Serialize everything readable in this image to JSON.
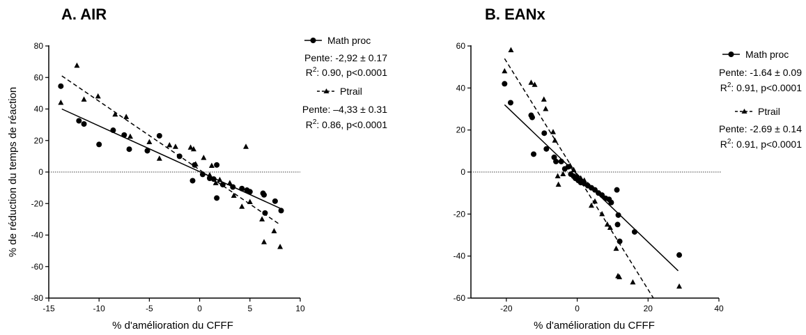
{
  "chart_data": [
    {
      "type": "scatter",
      "title": "A. AIR",
      "xlabel": "% d'amélioration du CFFF",
      "ylabel": "% de réduction du temps de réaction",
      "xlim": [
        -15,
        10
      ],
      "ylim": [
        -80,
        80
      ],
      "xticks": [
        "-15",
        "-10",
        "-5",
        "0",
        "5",
        "10"
      ],
      "yticks": [
        "80",
        "60",
        "40",
        "20",
        "0",
        "-20",
        "-40",
        "-60",
        "-80"
      ],
      "series": [
        {
          "name": "Math proc",
          "marker": "circle",
          "line": "solid",
          "fit": {
            "x0": -13.7,
            "y0": 40,
            "x1": 8,
            "y1": -23
          },
          "points": [
            [
              -13.8,
              54.5
            ],
            [
              -12,
              32.5
            ],
            [
              -11.5,
              30.5
            ],
            [
              -10,
              17.5
            ],
            [
              -8.6,
              26.5
            ],
            [
              -7.5,
              23.5
            ],
            [
              -7,
              14.5
            ],
            [
              -5.2,
              13.5
            ],
            [
              -4,
              23
            ],
            [
              -2,
              10
            ],
            [
              -0.7,
              -5.5
            ],
            [
              -0.5,
              4.5
            ],
            [
              0.3,
              -1.5
            ],
            [
              1,
              -4
            ],
            [
              1.4,
              -4.5
            ],
            [
              1.7,
              -16.5
            ],
            [
              1.7,
              4.5
            ],
            [
              2.3,
              -8
            ],
            [
              3.3,
              -9.5
            ],
            [
              4.2,
              -10.5
            ],
            [
              4.7,
              -11.5
            ],
            [
              5,
              -12.5
            ],
            [
              6.3,
              -13.5
            ],
            [
              6.4,
              -14.5
            ],
            [
              6.5,
              -26
            ],
            [
              7.5,
              -18.5
            ],
            [
              8.1,
              -24.5
            ]
          ]
        },
        {
          "name": "Ptrail",
          "marker": "triangle",
          "line": "dashed",
          "fit": {
            "x0": -13.7,
            "y0": 61,
            "x1": 7.9,
            "y1": -33
          },
          "points": [
            [
              -13.8,
              44
            ],
            [
              -12.2,
              67.5
            ],
            [
              -11.5,
              46
            ],
            [
              -10.1,
              48
            ],
            [
              -8.4,
              36.5
            ],
            [
              -7.3,
              35
            ],
            [
              -6.9,
              22.5
            ],
            [
              -5,
              19
            ],
            [
              -4,
              8.5
            ],
            [
              -3,
              17
            ],
            [
              -2.4,
              16
            ],
            [
              -0.9,
              15.5
            ],
            [
              -0.6,
              14.5
            ],
            [
              -0.4,
              5
            ],
            [
              0.4,
              9
            ],
            [
              1,
              -2
            ],
            [
              1.2,
              4
            ],
            [
              1.6,
              -7
            ],
            [
              2,
              -5
            ],
            [
              3,
              -7
            ],
            [
              3.4,
              -15
            ],
            [
              4.2,
              -22
            ],
            [
              4.6,
              16
            ],
            [
              5,
              -19
            ],
            [
              6.2,
              -30
            ],
            [
              6.4,
              -44.5
            ],
            [
              7.4,
              -37.5
            ],
            [
              8,
              -47.5
            ]
          ]
        }
      ],
      "legend": [
        {
          "label": "Math proc",
          "stats": [
            "Pente: -2,92 ± 0.17",
            "R²: 0.90, p<0.0001"
          ]
        },
        {
          "label": "Ptrail",
          "stats": [
            "Pente: –4,33 ± 0.31",
            "R²: 0.86, p<0.0001"
          ]
        }
      ],
      "legend_position": "top-right outside plot",
      "reference_line": "dotted horizontal at y=0"
    },
    {
      "type": "scatter",
      "title": "B. EANx",
      "xlabel": "% d'amélioration du CFFF",
      "ylabel": "",
      "xlim": [
        -30,
        40
      ],
      "ylim": [
        -60,
        60
      ],
      "xticks": [
        "-20",
        "0",
        "20",
        "40"
      ],
      "yticks": [
        "60",
        "40",
        "20",
        "0",
        "-20",
        "-40",
        "-60"
      ],
      "series": [
        {
          "name": "Math proc",
          "marker": "circle",
          "line": "solid",
          "fit": {
            "x0": -20.5,
            "y0": 32,
            "x1": 28.5,
            "y1": -47
          },
          "points": [
            [
              -20.5,
              42
            ],
            [
              -18.8,
              33
            ],
            [
              -13,
              27
            ],
            [
              -12.7,
              26
            ],
            [
              -12.3,
              8.5
            ],
            [
              -9.3,
              18.5
            ],
            [
              -8.7,
              11
            ],
            [
              -6.5,
              7
            ],
            [
              -6,
              5
            ],
            [
              -4.5,
              5
            ],
            [
              -3.5,
              1.5
            ],
            [
              -2.5,
              2.5
            ],
            [
              -1.8,
              -1
            ],
            [
              -1,
              -2
            ],
            [
              -0.5,
              -3
            ],
            [
              0.3,
              -4
            ],
            [
              1,
              -5
            ],
            [
              2,
              -5.5
            ],
            [
              3,
              -6.5
            ],
            [
              4,
              -7.5
            ],
            [
              5,
              -8.5
            ],
            [
              6,
              -10
            ],
            [
              7,
              -11
            ],
            [
              8,
              -12.5
            ],
            [
              9,
              -13
            ],
            [
              9.6,
              -14.5
            ],
            [
              11.2,
              -8.5
            ],
            [
              11.6,
              -20.5
            ],
            [
              11.4,
              -25
            ],
            [
              12,
              -33
            ],
            [
              16.2,
              -28.5
            ],
            [
              28.8,
              -39.5
            ]
          ]
        },
        {
          "name": "Ptrail",
          "marker": "triangle",
          "line": "dashed",
          "fit": {
            "x0": -20.5,
            "y0": 54,
            "x1": 21.5,
            "y1": -60
          },
          "points": [
            [
              -20.5,
              48
            ],
            [
              -18.7,
              58
            ],
            [
              -13,
              42.5
            ],
            [
              -12,
              41.5
            ],
            [
              -9.4,
              34.5
            ],
            [
              -8.9,
              30
            ],
            [
              -6.8,
              19
            ],
            [
              -6.3,
              15
            ],
            [
              -5.5,
              -2
            ],
            [
              -5.3,
              -6
            ],
            [
              -4,
              -1
            ],
            [
              -2,
              3
            ],
            [
              -1,
              1
            ],
            [
              0,
              -2
            ],
            [
              1,
              -3
            ],
            [
              2,
              -4
            ],
            [
              3,
              -6
            ],
            [
              4,
              -16
            ],
            [
              5,
              -14
            ],
            [
              7,
              -20
            ],
            [
              8.5,
              -25
            ],
            [
              9.3,
              -26.5
            ],
            [
              11,
              -36.5
            ],
            [
              11.5,
              -49.5
            ],
            [
              11.9,
              -50
            ],
            [
              15.7,
              -52.5
            ],
            [
              28.8,
              -54.5
            ]
          ]
        }
      ],
      "legend": [
        {
          "label": "Math proc",
          "stats": [
            "Pente: -1.64 ± 0.09",
            "R²: 0.91, p<0.0001"
          ]
        },
        {
          "label": "Ptrail",
          "stats": [
            "Pente: -2.69 ± 0.14",
            "R²: 0.91, p<0.0001"
          ]
        }
      ],
      "legend_position": "top-right outside plot",
      "reference_line": "dotted horizontal at y=0"
    }
  ],
  "legend_text": {
    "A": {
      "s1_label": "Math proc",
      "s1_pente": "Pente: -2,92 ± 0.17",
      "s1_r2_rest": ": 0.90, p<0.0001",
      "s2_label": "Ptrail",
      "s2_pente": "Pente: –4,33 ± 0.31",
      "s2_r2_rest": ": 0.86, p<0.0001"
    },
    "B": {
      "s1_label": "Math proc",
      "s1_pente": "Pente: -1.64 ± 0.09",
      "s1_r2_rest": ": 0.91, p<0.0001",
      "s2_label": "Ptrail",
      "s2_pente": "Pente: -2.69 ± 0.14",
      "s2_r2_rest": ": 0.91, p<0.0001"
    },
    "r2_prefix": "R",
    "r2_sup": "2"
  }
}
